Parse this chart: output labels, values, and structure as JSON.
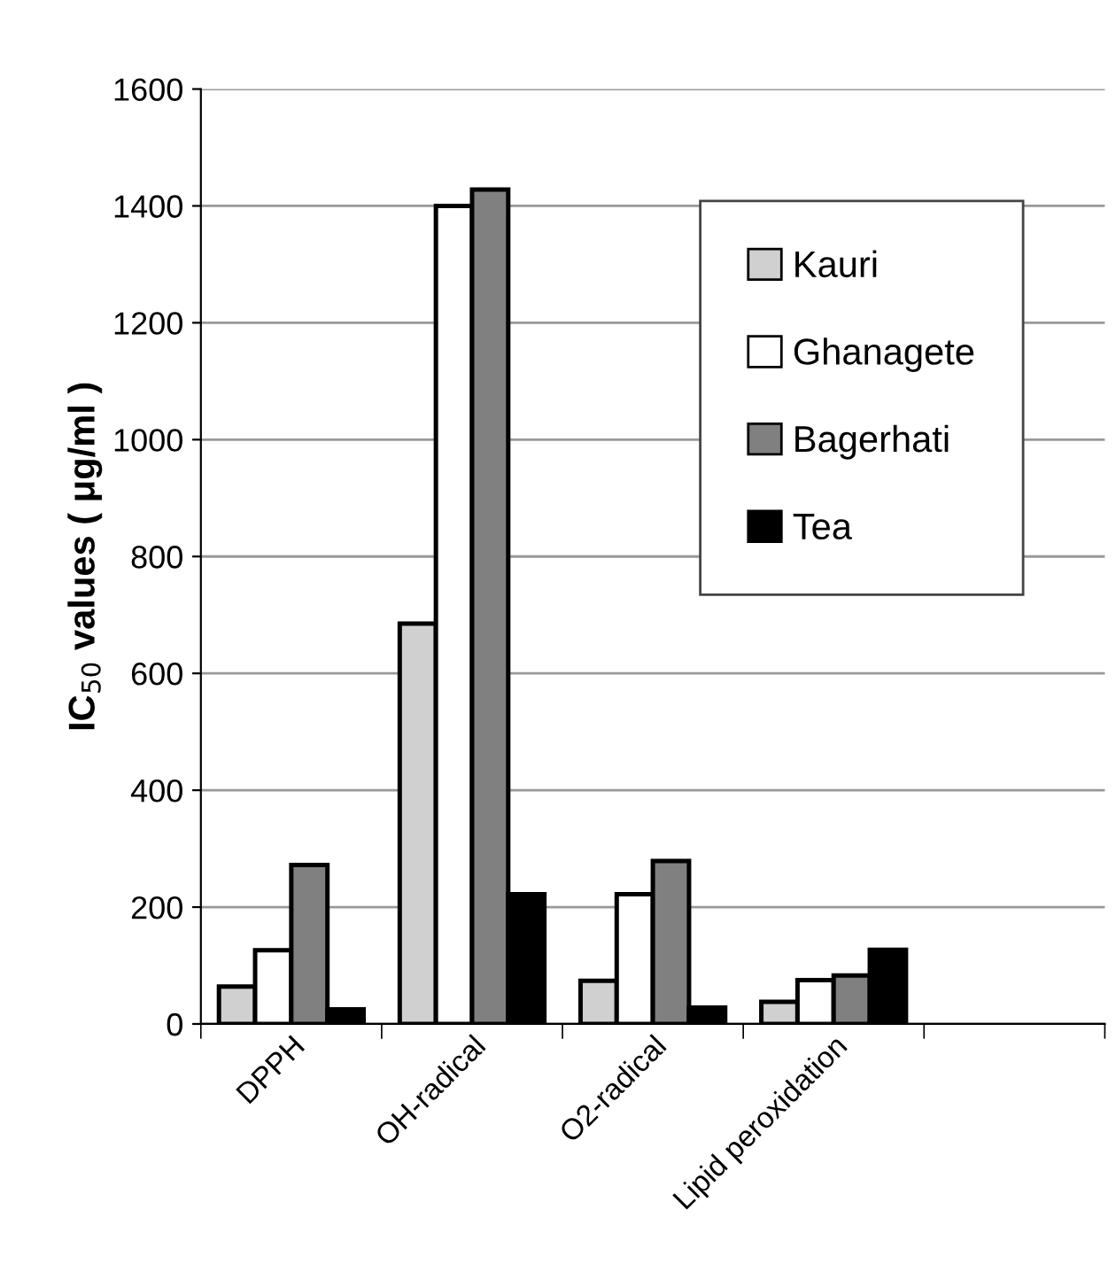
{
  "chart_data": {
    "type": "bar",
    "ylabel": "IC$_{50}$ values ( μg/ml )",
    "categories": [
      "DPPH",
      "OH-radical",
      "O2-radical",
      "Lipid peroxidation",
      null
    ],
    "series": [
      {
        "name": "Kauri",
        "color": "#d0d0d0",
        "values": [
          64,
          685,
          74,
          38,
          null
        ]
      },
      {
        "name": "Ghanagete",
        "color": "#ffffff",
        "values": [
          126,
          1400,
          222,
          75,
          null
        ]
      },
      {
        "name": "Bagerhati",
        "color": "#808080",
        "values": [
          272,
          1428,
          279,
          83,
          null
        ]
      },
      {
        "name": "Tea",
        "color": "#000000",
        "values": [
          25,
          222,
          28,
          127,
          null
        ]
      }
    ],
    "ylim": [
      0,
      1600
    ],
    "yticks": [
      0,
      200,
      400,
      600,
      800,
      1000,
      1200,
      1400,
      1600
    ],
    "grid": "y",
    "legend": "top right"
  }
}
